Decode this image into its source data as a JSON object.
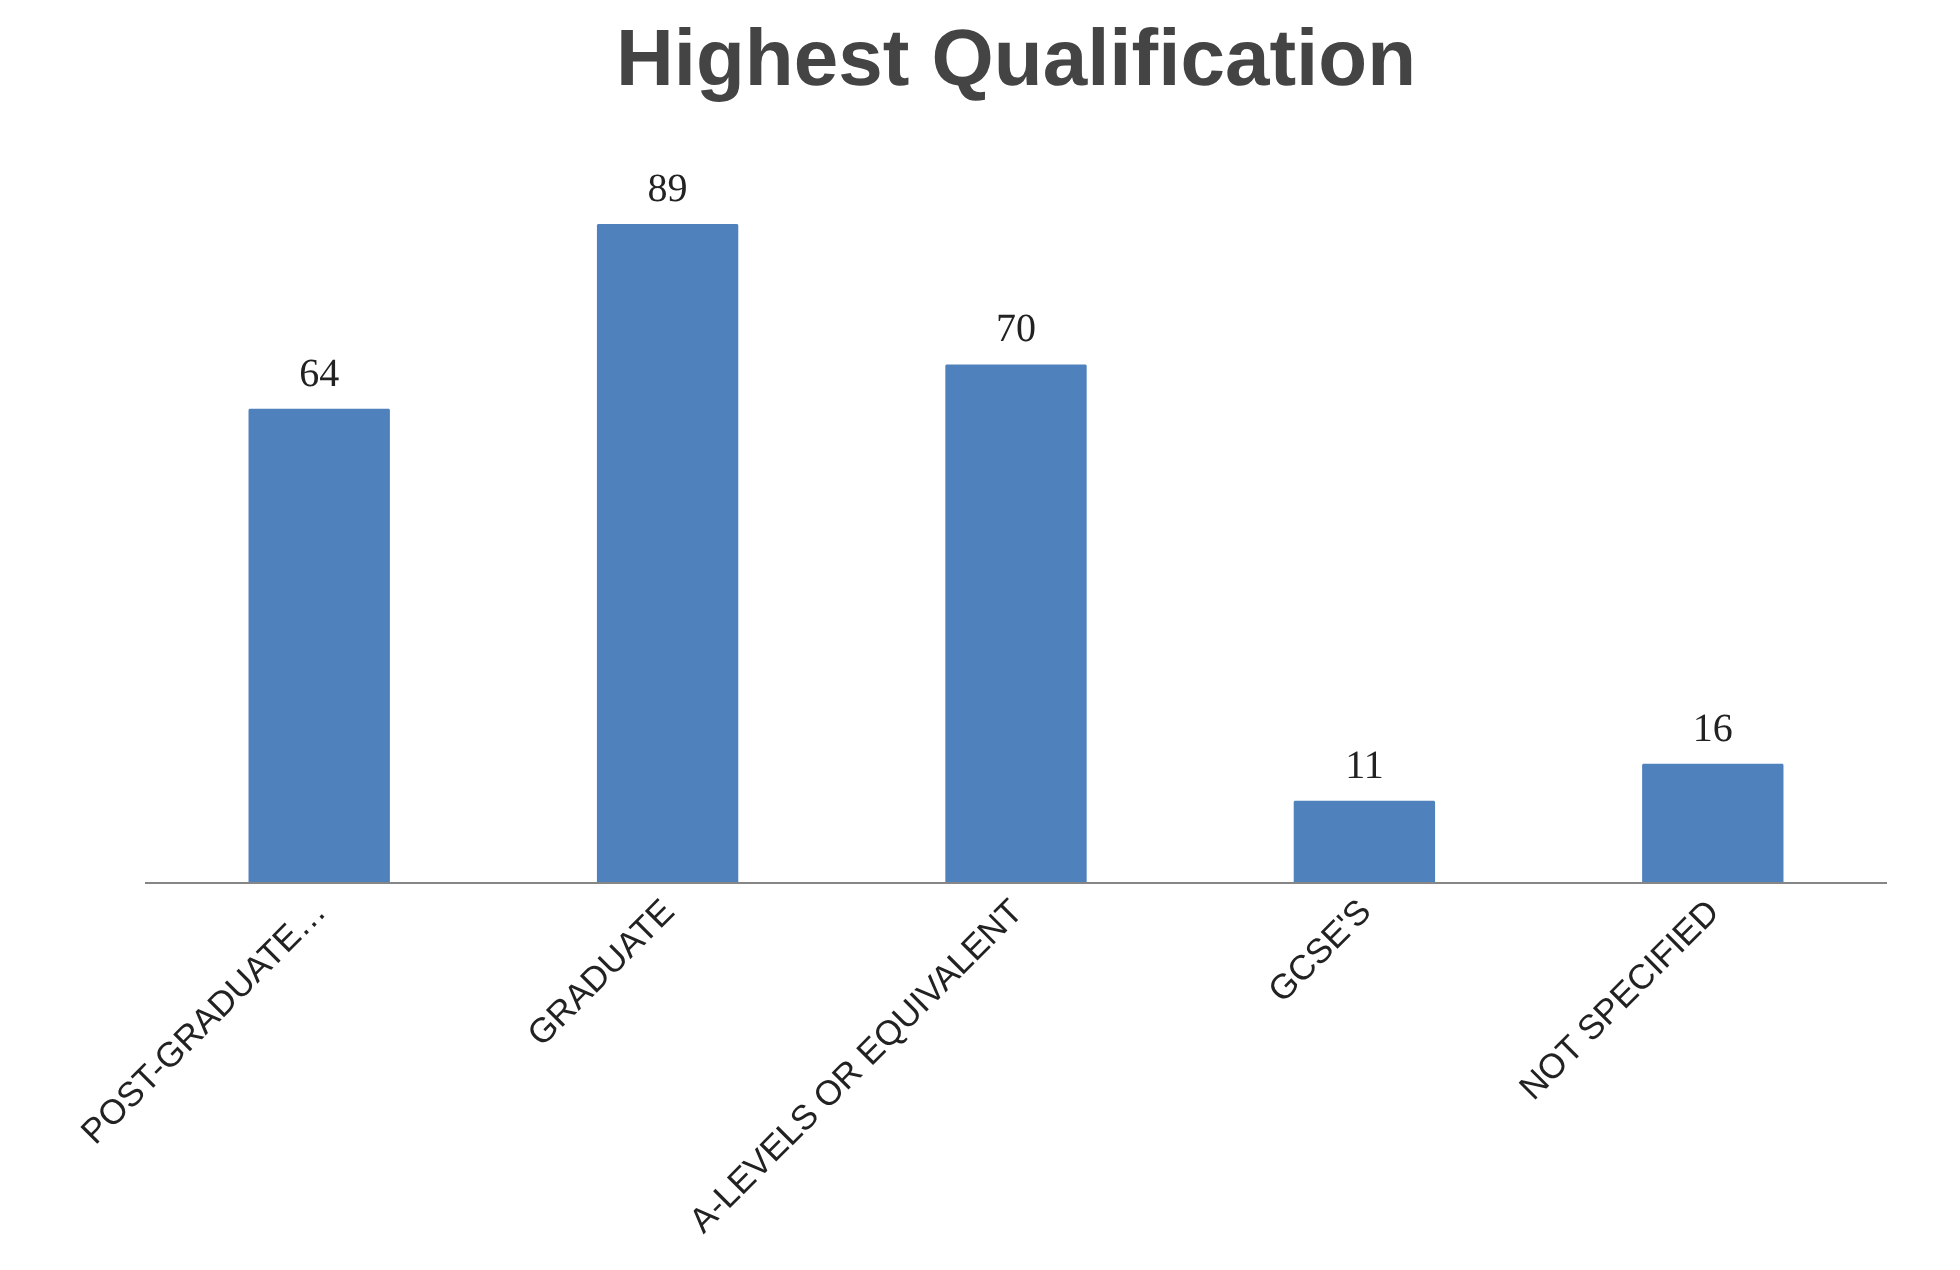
{
  "chart_data": {
    "type": "bar",
    "title": "Highest Qualification",
    "categories": [
      "POST-GRADUATE…",
      "GRADUATE",
      "A-LEVELS OR EQUIVALENT",
      "GCSE'S",
      "NOT SPECIFIED"
    ],
    "values": [
      64,
      89,
      70,
      11,
      16
    ],
    "color": "#4f81bd",
    "data_labels": true
  }
}
